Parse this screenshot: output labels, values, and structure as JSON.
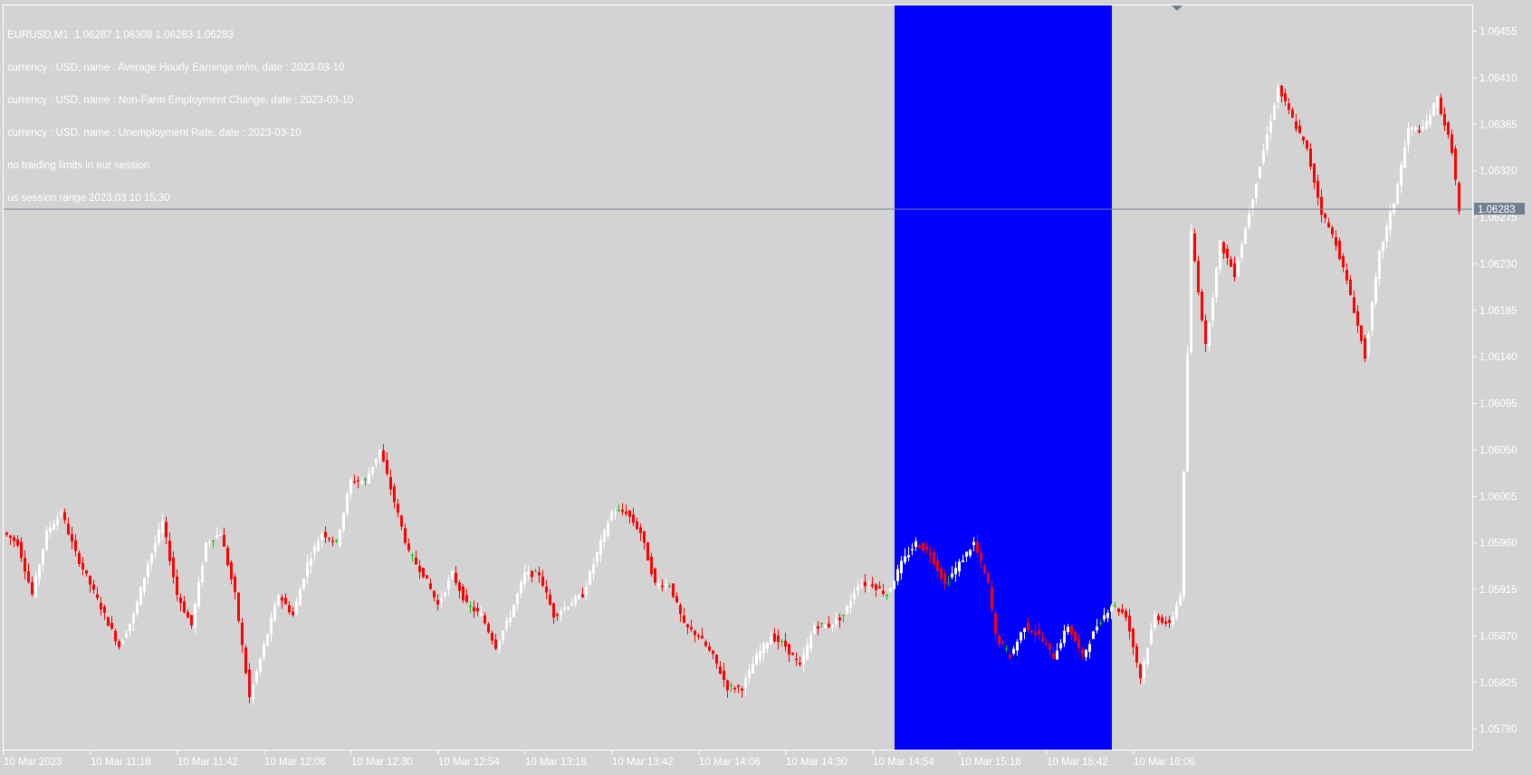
{
  "header": {
    "symbol_line": "EURUSD,M1  1.06287 1.06308 1.06283 1.06283",
    "info_lines": [
      "currency : USD, name : Average Hourly Earnings m/m, date : 2023-03-10",
      "currency : USD, name : Non-Farm Employment Change, date : 2023-03-10",
      "currency : USD, name : Unemployment Rate, date : 2023-03-10",
      "no traiding limits in eur session",
      "us session range 2023.03.10 15:30"
    ]
  },
  "colors": {
    "background": "#d3d3d3",
    "bull_candle": "#ffffff",
    "bear_candle": "#ff0000",
    "doji_candle": "#00c800",
    "session_highlight": "#0000ff",
    "current_price_line": "#708090",
    "axis_text": "#ffffff",
    "axis_line": "#ffffff"
  },
  "chart_data": {
    "type": "candlestick",
    "symbol": "EURUSD",
    "timeframe": "M1",
    "current_price": "1.06283",
    "ylim": [
      1.0576,
      1.0648
    ],
    "y_ticks": [
      "1.06455",
      "1.06410",
      "1.06365",
      "1.06320",
      "1.06275",
      "1.06230",
      "1.06185",
      "1.06140",
      "1.06095",
      "1.06050",
      "1.06005",
      "1.05960",
      "1.05915",
      "1.05870",
      "1.05825",
      "1.05780"
    ],
    "x_ticks": [
      "10 Mar 2023",
      "10 Mar 11:18",
      "10 Mar 11:42",
      "10 Mar 12:06",
      "10 Mar 12:30",
      "10 Mar 12:54",
      "10 Mar 13:18",
      "10 Mar 13:42",
      "10 Mar 14:06",
      "10 Mar 14:30",
      "10 Mar 14:54",
      "10 Mar 15:18",
      "10 Mar 15:42",
      "10 Mar 16:06"
    ],
    "session_range": {
      "from": "10 Mar 14:54",
      "to": "10 Mar 15:54"
    },
    "price_path": [
      [
        0,
        1.0597
      ],
      [
        4,
        1.0596
      ],
      [
        8,
        1.0591
      ],
      [
        12,
        1.0597
      ],
      [
        16,
        1.0599
      ],
      [
        20,
        1.0595
      ],
      [
        24,
        1.0592
      ],
      [
        28,
        1.0589
      ],
      [
        32,
        1.0586
      ],
      [
        36,
        1.0589
      ],
      [
        40,
        1.0594
      ],
      [
        44,
        1.0598
      ],
      [
        48,
        1.0591
      ],
      [
        52,
        1.0588
      ],
      [
        56,
        1.0596
      ],
      [
        60,
        1.0597
      ],
      [
        64,
        1.0591
      ],
      [
        68,
        1.0581
      ],
      [
        72,
        1.0586
      ],
      [
        76,
        1.0591
      ],
      [
        80,
        1.0589
      ],
      [
        84,
        1.0594
      ],
      [
        88,
        1.0597
      ],
      [
        92,
        1.0596
      ],
      [
        96,
        1.0602
      ],
      [
        100,
        1.0602
      ],
      [
        104,
        1.0605
      ],
      [
        108,
        1.06
      ],
      [
        112,
        1.0595
      ],
      [
        116,
        1.0593
      ],
      [
        120,
        1.059
      ],
      [
        124,
        1.0593
      ],
      [
        128,
        1.059
      ],
      [
        132,
        1.0589
      ],
      [
        136,
        1.0586
      ],
      [
        140,
        1.0589
      ],
      [
        144,
        1.0593
      ],
      [
        148,
        1.0593
      ],
      [
        152,
        1.0589
      ],
      [
        156,
        1.059
      ],
      [
        160,
        1.0591
      ],
      [
        164,
        1.0595
      ],
      [
        168,
        1.0599
      ],
      [
        172,
        1.0599
      ],
      [
        176,
        1.0597
      ],
      [
        180,
        1.0592
      ],
      [
        184,
        1.0592
      ],
      [
        188,
        1.0588
      ],
      [
        192,
        1.0587
      ],
      [
        196,
        1.0585
      ],
      [
        200,
        1.0582
      ],
      [
        204,
        1.0582
      ],
      [
        208,
        1.0585
      ],
      [
        212,
        1.0587
      ],
      [
        216,
        1.0586
      ],
      [
        220,
        1.0584
      ],
      [
        224,
        1.0588
      ],
      [
        228,
        1.0588
      ],
      [
        232,
        1.0589
      ],
      [
        236,
        1.0592
      ],
      [
        240,
        1.0592
      ],
      [
        244,
        1.0591
      ],
      [
        248,
        1.0594
      ],
      [
        252,
        1.0596
      ],
      [
        256,
        1.0595
      ],
      [
        260,
        1.0592
      ],
      [
        264,
        1.0594
      ],
      [
        268,
        1.0596
      ],
      [
        272,
        1.0592
      ],
      [
        274,
        1.0587
      ],
      [
        278,
        1.0585
      ],
      [
        282,
        1.0588
      ],
      [
        286,
        1.0587
      ],
      [
        290,
        1.0585
      ],
      [
        294,
        1.0588
      ],
      [
        298,
        1.0585
      ],
      [
        302,
        1.0588
      ],
      [
        306,
        1.059
      ],
      [
        310,
        1.0589
      ],
      [
        314,
        1.0583
      ],
      [
        318,
        1.0589
      ],
      [
        322,
        1.0588
      ],
      [
        325,
        1.0591
      ],
      [
        328,
        1.0626
      ],
      [
        332,
        1.0615
      ],
      [
        336,
        1.0625
      ],
      [
        340,
        1.0622
      ],
      [
        344,
        1.0628
      ],
      [
        348,
        1.0634
      ],
      [
        352,
        1.064
      ],
      [
        356,
        1.0637
      ],
      [
        360,
        1.0634
      ],
      [
        364,
        1.0628
      ],
      [
        368,
        1.0625
      ],
      [
        372,
        1.062
      ],
      [
        376,
        1.0614
      ],
      [
        380,
        1.0624
      ],
      [
        384,
        1.0629
      ],
      [
        388,
        1.0636
      ],
      [
        392,
        1.0636
      ],
      [
        396,
        1.0639
      ],
      [
        400,
        1.0634
      ],
      [
        402,
        1.0628
      ]
    ]
  }
}
